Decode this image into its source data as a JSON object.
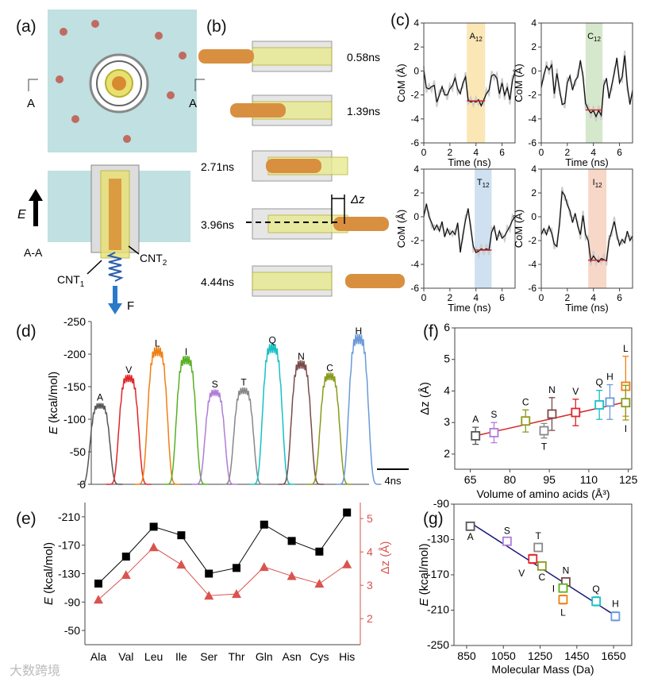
{
  "panel_labels": {
    "a": "(a)",
    "b": "(b)",
    "c": "(c)",
    "d": "(d)",
    "e": "(e)",
    "f": "(f)",
    "g": "(g)"
  },
  "panel_a": {
    "section_mark_left": "A",
    "section_mark_right": "A",
    "field_label": "E",
    "section_label": "A-A",
    "cnt1": "CNT",
    "cnt1_sub": "1",
    "cnt2": "CNT",
    "cnt2_sub": "2",
    "force_label": "F"
  },
  "panel_b": {
    "times": [
      "0.58ns",
      "1.39ns",
      "2.71ns",
      "3.96ns",
      "4.44ns"
    ],
    "delta_label": "Δz"
  },
  "watermark": "大数跨境",
  "chart_data": [
    {
      "id": "c",
      "type": "line",
      "xlabel": "Time (ns)",
      "ylabel": "CoM (Å)",
      "xlim": [
        0,
        7
      ],
      "ylim": [
        -6,
        4
      ],
      "xticks": [
        0,
        2,
        4,
        6
      ],
      "yticks": [
        -6,
        -4,
        -2,
        0,
        2,
        4
      ],
      "dt": 0.2,
      "series": [
        {
          "name": "A",
          "sub": "12",
          "band": [
            3.3,
            4.7
          ],
          "band_color": "#fbe7b5",
          "mean": -2.5,
          "values": [
            0,
            -1.4,
            -1.5,
            -1.3,
            -1.2,
            -2.6,
            -2.0,
            -1.3,
            -2.0,
            -2.0,
            -1.5,
            -1.2,
            -0.6,
            -1.5,
            -1.9,
            -1.0,
            -0.5,
            -2.4,
            -2.6,
            -2.5,
            -2.6,
            -2.4,
            -2.9,
            -2.4,
            -1.9,
            -1.6,
            -0.4,
            -0.3,
            -0.6,
            -1.9,
            -1.0,
            -2.0,
            -1.4,
            -2.4,
            -0.8,
            0
          ]
        },
        {
          "name": "C",
          "sub": "12",
          "band": [
            3.4,
            4.7
          ],
          "band_color": "#d6e8cc",
          "mean": -3.25,
          "values": [
            -1.4,
            -0.3,
            0.4,
            0.1,
            0.5,
            -1.9,
            -0.2,
            -1.5,
            -2.8,
            -2.7,
            -1.0,
            -0.4,
            -1.6,
            -0.8,
            -0.5,
            0.9,
            -0.5,
            -2.7,
            -3.2,
            -3.5,
            -3.3,
            -3.8,
            -3.3,
            -3.7,
            -1.2,
            -0.6,
            -2.3,
            -1.2,
            -0.2,
            1.1,
            -1.0,
            -0.5,
            1.3,
            -1.2,
            -2.8,
            -1.6
          ]
        },
        {
          "name": "T",
          "sub": "12",
          "band": [
            3.9,
            5.2
          ],
          "band_color": "#cfe0f0",
          "mean": -2.8,
          "values": [
            0,
            1.1,
            0,
            -0.5,
            -1.1,
            -0.7,
            -1.2,
            -0.4,
            -1.7,
            -1.0,
            -1.5,
            -1.2,
            -1.5,
            -0.5,
            -3.0,
            -1.5,
            -0.3,
            0.7,
            -1.0,
            -2.5,
            -3.0,
            -2.9,
            -2.7,
            -2.8,
            -2.7,
            -2.8,
            -1.3,
            -0.8,
            -2.0,
            -1.2,
            -1.8,
            -1.6,
            -1.2,
            -0.8,
            -0.3,
            0
          ]
        },
        {
          "name": "I",
          "sub": "12",
          "band": [
            3.6,
            5.0
          ],
          "band_color": "#f7d7c8",
          "mean": -3.65,
          "values": [
            -1.5,
            -1.0,
            -1.5,
            -0.8,
            -1.4,
            -2.3,
            -2.5,
            -0.5,
            2.1,
            1.8,
            1.0,
            0.5,
            -0.5,
            0.3,
            -0.8,
            -1.5,
            0.1,
            -1.5,
            -2.0,
            -3.7,
            -3.3,
            -3.6,
            -3.8,
            -3.5,
            -3.6,
            -3.7,
            -2.0,
            -1.2,
            -0.4,
            -1.5,
            -2.4,
            -1.9,
            -2.2,
            -1.2,
            -2.0,
            -1.6
          ]
        }
      ]
    },
    {
      "id": "d",
      "type": "line",
      "ylabel": "E (kcal/mol)",
      "ylabel_italic": "E",
      "ylabel_rest": " (kcal/mol)",
      "ylim": [
        0,
        -250
      ],
      "yticks": [
        -250,
        -200,
        -150,
        -100,
        -50,
        0
      ],
      "scale_bar": "4ns",
      "peaks": [
        {
          "label": "A",
          "value": -120,
          "color": "#555555"
        },
        {
          "label": "V",
          "value": -162,
          "color": "#e0262a"
        },
        {
          "label": "L",
          "value": -203,
          "color": "#f07f12"
        },
        {
          "label": "I",
          "value": -190,
          "color": "#58b024"
        },
        {
          "label": "S",
          "value": -140,
          "color": "#b07cd8"
        },
        {
          "label": "T",
          "value": -143,
          "color": "#888888"
        },
        {
          "label": "Q",
          "value": -208,
          "color": "#19c0c4"
        },
        {
          "label": "N",
          "value": -183,
          "color": "#7a4a4a"
        },
        {
          "label": "C",
          "value": -165,
          "color": "#8a9a1a"
        },
        {
          "label": "H",
          "value": -222,
          "color": "#6a9ad8"
        }
      ]
    },
    {
      "id": "e",
      "type": "line",
      "categories": [
        "Ala",
        "Val",
        "Leu",
        "Ile",
        "Ser",
        "Thr",
        "Gln",
        "Asn",
        "Cys",
        "His"
      ],
      "ylabel": "E (kcal/mol)",
      "ylabel_italic": "E",
      "ylabel_rest": " (kcal/mol)",
      "ylim": [
        -30,
        -230
      ],
      "yticks": [
        -210,
        -170,
        -130,
        -90,
        -50
      ],
      "y2label": "Δz (Å)",
      "y2lim": [
        1.22,
        5.48
      ],
      "y2ticks": [
        2,
        3,
        4,
        5
      ],
      "series": [
        {
          "name": "E",
          "axis": "left",
          "color": "#000000",
          "marker": "square",
          "values": [
            -116,
            -154,
            -196,
            -184,
            -130,
            -138,
            -199,
            -176,
            -161,
            -216
          ]
        },
        {
          "name": "Δz",
          "axis": "right",
          "color": "#d9534f",
          "marker": "triangle",
          "values": [
            2.57,
            3.31,
            4.14,
            3.62,
            2.69,
            2.74,
            3.55,
            3.28,
            3.05,
            3.63
          ]
        }
      ]
    },
    {
      "id": "f",
      "type": "scatter",
      "xlabel": "Volume of amino acids (Å³)",
      "ylabel": "Δz (Å)",
      "xlim": [
        59.1,
        126.3
      ],
      "ylim": [
        1.52,
        6
      ],
      "xticks": [
        65,
        80,
        95,
        110,
        125
      ],
      "yticks": [
        2,
        3,
        4,
        5,
        6
      ],
      "fit_color": "#d62728",
      "fit": [
        [
          67,
          2.58
        ],
        [
          124,
          3.65
        ]
      ],
      "points": [
        {
          "label": "A",
          "x": 67,
          "y": 2.58,
          "err": 0.27,
          "color": "#555555",
          "lpos": "top"
        },
        {
          "label": "S",
          "x": 74,
          "y": 2.68,
          "err": 0.32,
          "color": "#b07cd8",
          "lpos": "top"
        },
        {
          "label": "C",
          "x": 86,
          "y": 3.05,
          "err": 0.35,
          "color": "#8a9a1a",
          "lpos": "top"
        },
        {
          "label": "T",
          "x": 93,
          "y": 2.74,
          "err": 0.23,
          "color": "#888888",
          "lpos": "bottom"
        },
        {
          "label": "N",
          "x": 96,
          "y": 3.27,
          "err": 0.52,
          "color": "#7a4a4a",
          "lpos": "top"
        },
        {
          "label": "V",
          "x": 105,
          "y": 3.32,
          "err": 0.42,
          "color": "#e0262a",
          "lpos": "top"
        },
        {
          "label": "Q",
          "x": 114,
          "y": 3.56,
          "err": 0.46,
          "color": "#19c0c4",
          "lpos": "top"
        },
        {
          "label": "H",
          "x": 118,
          "y": 3.65,
          "err": 0.55,
          "color": "#6a9ad8",
          "lpos": "top"
        },
        {
          "label": "L",
          "x": 124,
          "y": 4.15,
          "err": 0.95,
          "color": "#f07f12",
          "lpos": "top"
        },
        {
          "label": "I",
          "x": 124,
          "y": 3.63,
          "err": 0.55,
          "color": "#8a9a1a",
          "lpos": "bottom"
        }
      ]
    },
    {
      "id": "g",
      "type": "scatter",
      "xlabel": "Molecular Mass (Da)",
      "ylabel": "E (kcal/mol)",
      "ylabel_italic": "E",
      "ylabel_rest": " (kcal/mol)",
      "xlim": [
        781,
        1749
      ],
      "ylim": [
        -250,
        -90
      ],
      "xticks": [
        850,
        1050,
        1250,
        1450,
        1650
      ],
      "yticks": [
        -250,
        -210,
        -170,
        -130,
        -90
      ],
      "fit_color": "#1a1a7a",
      "fit": [
        [
          870,
          -111
        ],
        [
          1650,
          -215
        ]
      ],
      "points": [
        {
          "label": "A",
          "x": 870,
          "y": -115,
          "err": 2,
          "color": "#555555",
          "lpos": "bottom"
        },
        {
          "label": "S",
          "x": 1070,
          "y": -132,
          "err": 3,
          "color": "#b07cd8",
          "lpos": "top"
        },
        {
          "label": "T",
          "x": 1240,
          "y": -139,
          "err": 4,
          "color": "#888888",
          "lpos": "top"
        },
        {
          "label": "V",
          "x": 1210,
          "y": -152,
          "err": 5,
          "color": "#e0262a",
          "lpos": "bottomleft"
        },
        {
          "label": "C",
          "x": 1260,
          "y": -160,
          "err": 3,
          "color": "#8a9a1a",
          "lpos": "bottom"
        },
        {
          "label": "N",
          "x": 1390,
          "y": -178,
          "err": 4,
          "color": "#7a4a4a",
          "lpos": "top"
        },
        {
          "label": "I",
          "x": 1375,
          "y": -185,
          "err": 3,
          "color": "#58b024",
          "lpos": "left"
        },
        {
          "label": "L",
          "x": 1375,
          "y": -198,
          "err": 5,
          "color": "#f07f12",
          "lpos": "bottom"
        },
        {
          "label": "Q",
          "x": 1555,
          "y": -200,
          "err": 5,
          "color": "#19c0c4",
          "lpos": "top"
        },
        {
          "label": "H",
          "x": 1660,
          "y": -217,
          "err": 5,
          "color": "#6a9ad8",
          "lpos": "top"
        }
      ]
    }
  ]
}
